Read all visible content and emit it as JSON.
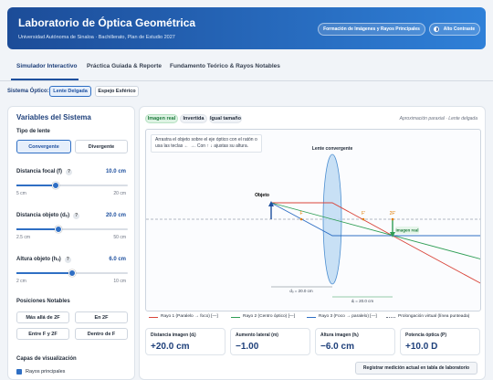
{
  "header": {
    "title": "Laboratorio de Óptica Geométrica",
    "subtitle": "Universidad Autónoma de Sinaloa · Bachillerato, Plan de Estudio 2027",
    "buttons": [
      "Formación de Imágenes y Rayos Principales",
      "Alto Contraste"
    ]
  },
  "tabs": [
    "Simulador Interactivo",
    "Práctica Guiada & Reporte",
    "Fundamento Teórico & Rayos Notables"
  ],
  "system": {
    "label": "Sistema Óptico:",
    "options": [
      "Lente Delgada",
      "Espejo Esférico"
    ]
  },
  "panel": {
    "title": "Variables del Sistema",
    "help": "?",
    "lens_type": {
      "label": "Tipo de lente",
      "options": [
        "Convergente",
        "Divergente"
      ]
    },
    "sliders": [
      {
        "label": "Distancia focal (f)",
        "value": "10.0 cm",
        "min": "5 cm",
        "max": "20 cm"
      },
      {
        "label": "Distancia objeto (dₒ)",
        "value": "20.0 cm",
        "min": "2.5 cm",
        "max": "50 cm"
      },
      {
        "label": "Altura objeto (hₒ)",
        "value": "6.0 cm",
        "min": "2 cm",
        "max": "10 cm"
      }
    ],
    "notable": {
      "title": "Posiciones Notables",
      "options": [
        "Más allá de 2F",
        "En 2F",
        "Entre F y 2F",
        "Dentro de F"
      ]
    },
    "layers": {
      "title": "Capas de visualización",
      "items": [
        "Rayos principales"
      ]
    }
  },
  "view": {
    "tags": [
      "Imagen real",
      "Invertida",
      "Igual tamaño"
    ],
    "note": "Aproximación paraxial · Lente delgada",
    "instructions": "Arrastra el objeto sobre el eje óptico con el ratón o usa las teclas ← →. Con ↑ ↓ ajustas su altura.",
    "diagram": {
      "lens": "Lente convergente",
      "object": "Objeto",
      "f": "F",
      "f_prime": "F'",
      "two_f_prime": "2F'",
      "image": "Imagen real",
      "d_o": "dₒ = 20.0 cm",
      "d_i": "dᵢ = 20.0 cm"
    },
    "legend": [
      "Rayo 1 (Paralelo → foco) [—]",
      "Rayo 2 (Centro óptico) [—]",
      "Rayo 3 (Foco → paralelo) [—]",
      "Prolongación virtual (línea punteada)"
    ]
  },
  "results": [
    {
      "label": "Distancia imagen (dᵢ)",
      "value": "+20.0 cm"
    },
    {
      "label": "Aumento lateral (m)",
      "value": "−1.00"
    },
    {
      "label": "Altura imagen (hᵢ)",
      "value": "−6.0 cm"
    },
    {
      "label": "Potencia óptica (P)",
      "value": "+10.0 D"
    }
  ],
  "action": "Registrar medición actual en tabla de laboratorio"
}
